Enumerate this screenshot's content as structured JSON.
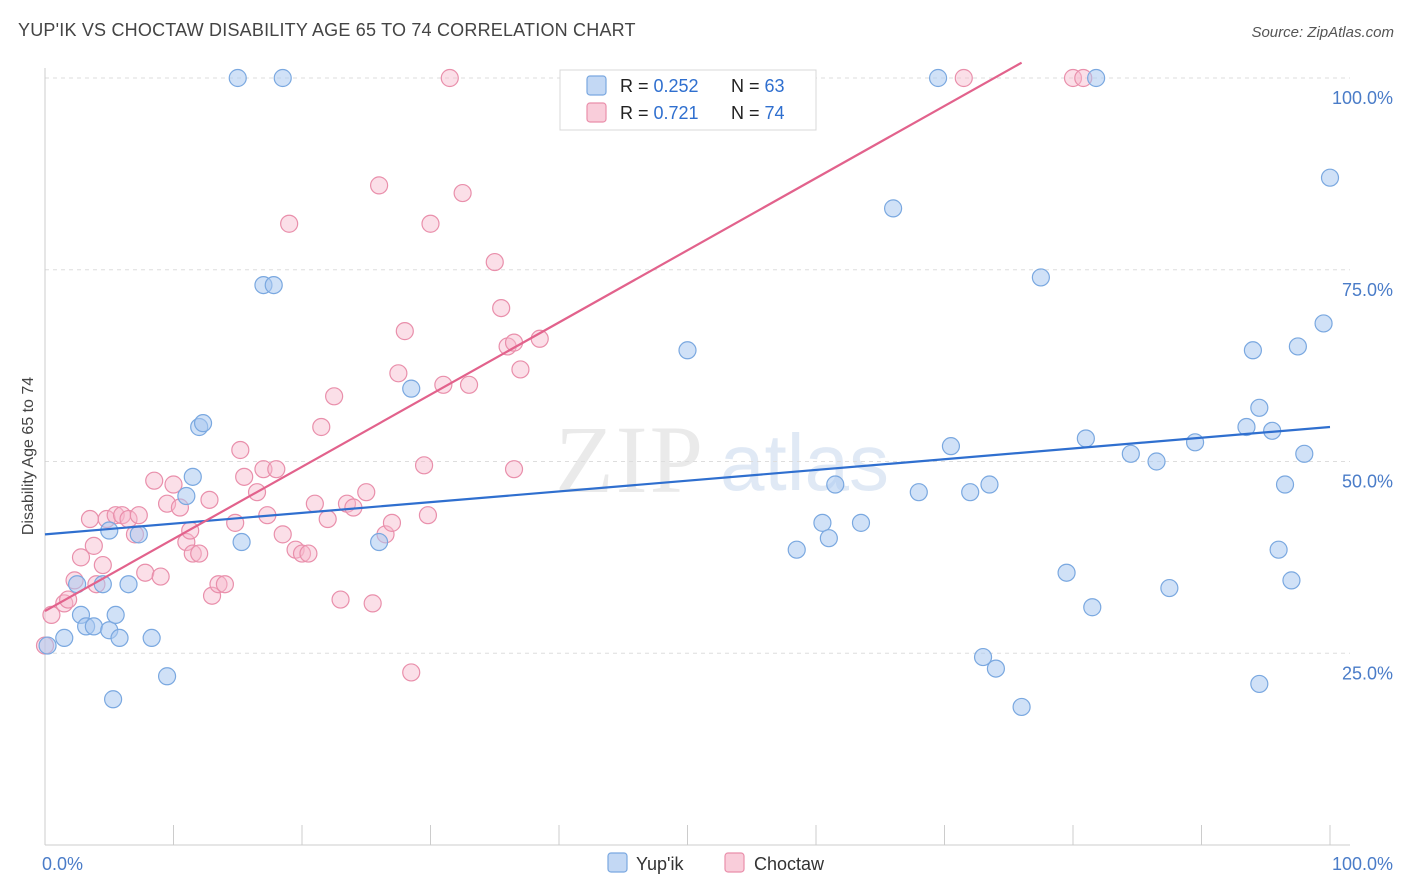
{
  "header": {
    "title": "YUP'IK VS CHOCTAW DISABILITY AGE 65 TO 74 CORRELATION CHART",
    "source": "Source: ZipAtlas.com"
  },
  "watermark": {
    "zip": "ZIP",
    "atlas": "atlas"
  },
  "legend_box": {
    "rows": [
      {
        "r_label": "R = ",
        "r_value": "0.252",
        "n_label": "N = ",
        "n_value": "63"
      },
      {
        "r_label": "R = ",
        "r_value": "0.721",
        "n_label": "N = ",
        "n_value": "74"
      }
    ]
  },
  "bottom_legend": {
    "items": [
      "Yup'ik",
      "Choctaw"
    ]
  },
  "colors": {
    "yupik_fill": "#a9c8f0",
    "yupik_stroke": "#7aa8e0",
    "yupik_line": "#2f6fcf",
    "choctaw_fill": "#f6b8cb",
    "choctaw_stroke": "#e98fab",
    "choctaw_line": "#e2628c",
    "axis_text": "#4a7cc8",
    "grid": "#dddddd"
  },
  "chart_data": {
    "type": "scatter",
    "title": "YUP'IK VS CHOCTAW DISABILITY AGE 65 TO 74 CORRELATION CHART",
    "xlabel": "",
    "ylabel": "Disability Age 65 to 74",
    "xlim": [
      0,
      100
    ],
    "ylim": [
      0,
      100
    ],
    "x_tick_labels": [
      "0.0%",
      "100.0%"
    ],
    "y_tick_labels": [
      "25.0%",
      "50.0%",
      "75.0%",
      "100.0%"
    ],
    "y_ticks": [
      25,
      50,
      75,
      100
    ],
    "grid": true,
    "series": [
      {
        "name": "Yup'ik",
        "r": 0.252,
        "n": 63,
        "trend": [
          [
            0,
            40.5
          ],
          [
            100,
            54.5
          ]
        ],
        "points": [
          [
            0.2,
            26
          ],
          [
            1.5,
            27
          ],
          [
            2.5,
            34
          ],
          [
            2.8,
            30
          ],
          [
            3.2,
            28.5
          ],
          [
            3.8,
            28.5
          ],
          [
            4.5,
            34
          ],
          [
            5,
            28
          ],
          [
            5.3,
            19
          ],
          [
            5.5,
            30
          ],
          [
            5.8,
            27
          ],
          [
            6.5,
            34
          ],
          [
            7.3,
            40.5
          ],
          [
            8.3,
            27
          ],
          [
            9.5,
            22
          ],
          [
            11,
            45.5
          ],
          [
            11.5,
            48
          ],
          [
            12,
            54.5
          ],
          [
            12.3,
            55
          ],
          [
            15,
            100
          ],
          [
            15.3,
            39.5
          ],
          [
            17,
            73
          ],
          [
            17.8,
            73
          ],
          [
            18.5,
            100
          ],
          [
            26,
            39.5
          ],
          [
            28.5,
            59.5
          ],
          [
            50,
            64.5
          ],
          [
            58.5,
            38.5
          ],
          [
            60.5,
            42
          ],
          [
            61,
            40
          ],
          [
            61.5,
            47
          ],
          [
            63.5,
            42
          ],
          [
            66,
            83
          ],
          [
            68,
            46
          ],
          [
            69.5,
            100
          ],
          [
            70.5,
            52
          ],
          [
            72,
            46
          ],
          [
            73,
            24.5
          ],
          [
            73.5,
            47
          ],
          [
            74,
            23
          ],
          [
            76,
            18
          ],
          [
            77.5,
            74
          ],
          [
            79.5,
            35.5
          ],
          [
            81,
            53
          ],
          [
            81.8,
            100
          ],
          [
            81.5,
            31
          ],
          [
            84.5,
            51
          ],
          [
            86.5,
            50
          ],
          [
            87.5,
            33.5
          ],
          [
            89.5,
            52.5
          ],
          [
            93.5,
            54.5
          ],
          [
            94,
            64.5
          ],
          [
            94.5,
            57
          ],
          [
            94.5,
            21
          ],
          [
            95.5,
            54
          ],
          [
            96,
            38.5
          ],
          [
            96.5,
            47
          ],
          [
            97,
            34.5
          ],
          [
            97.5,
            65
          ],
          [
            98,
            51
          ],
          [
            99.5,
            68
          ],
          [
            100,
            87
          ],
          [
            5,
            41
          ]
        ]
      },
      {
        "name": "Choctaw",
        "r": 0.721,
        "n": 74,
        "trend": [
          [
            0,
            30.5
          ],
          [
            76,
            102
          ]
        ],
        "points": [
          [
            0,
            26
          ],
          [
            0.5,
            30
          ],
          [
            1.5,
            31.5
          ],
          [
            1.8,
            32
          ],
          [
            2.3,
            34.5
          ],
          [
            2.8,
            37.5
          ],
          [
            3.5,
            42.5
          ],
          [
            3.8,
            39
          ],
          [
            4,
            34
          ],
          [
            4.5,
            36.5
          ],
          [
            4.8,
            42.5
          ],
          [
            5.5,
            43
          ],
          [
            6,
            43
          ],
          [
            6.5,
            42.5
          ],
          [
            7,
            40.5
          ],
          [
            7.3,
            43
          ],
          [
            7.8,
            35.5
          ],
          [
            8.5,
            47.5
          ],
          [
            9,
            35
          ],
          [
            9.5,
            44.5
          ],
          [
            10,
            47
          ],
          [
            10.5,
            44
          ],
          [
            11,
            39.5
          ],
          [
            11.3,
            41
          ],
          [
            11.5,
            38
          ],
          [
            12,
            38
          ],
          [
            12.8,
            45
          ],
          [
            13,
            32.5
          ],
          [
            13.5,
            34
          ],
          [
            14,
            34
          ],
          [
            14.8,
            42
          ],
          [
            15.2,
            51.5
          ],
          [
            15.5,
            48
          ],
          [
            16.5,
            46
          ],
          [
            17,
            49
          ],
          [
            17.3,
            43
          ],
          [
            18,
            49
          ],
          [
            18.5,
            40.5
          ],
          [
            19,
            81
          ],
          [
            19.5,
            38.5
          ],
          [
            20,
            38
          ],
          [
            20.5,
            38
          ],
          [
            21,
            44.5
          ],
          [
            21.5,
            54.5
          ],
          [
            22,
            42.5
          ],
          [
            22.5,
            58.5
          ],
          [
            23,
            32
          ],
          [
            23.5,
            44.5
          ],
          [
            24,
            44
          ],
          [
            25,
            46
          ],
          [
            25.5,
            31.5
          ],
          [
            26,
            86
          ],
          [
            26.5,
            40.5
          ],
          [
            27,
            42
          ],
          [
            27.5,
            61.5
          ],
          [
            28,
            67
          ],
          [
            28.5,
            22.5
          ],
          [
            29.5,
            49.5
          ],
          [
            29.8,
            43
          ],
          [
            30,
            81
          ],
          [
            31,
            60
          ],
          [
            31.5,
            100
          ],
          [
            32.5,
            85
          ],
          [
            33,
            60
          ],
          [
            35,
            76
          ],
          [
            35.5,
            70
          ],
          [
            36,
            65
          ],
          [
            36.5,
            65.5
          ],
          [
            36.5,
            49
          ],
          [
            37,
            62
          ],
          [
            38.5,
            66
          ],
          [
            71.5,
            100
          ],
          [
            80,
            100
          ],
          [
            80.8,
            100
          ]
        ]
      }
    ]
  }
}
